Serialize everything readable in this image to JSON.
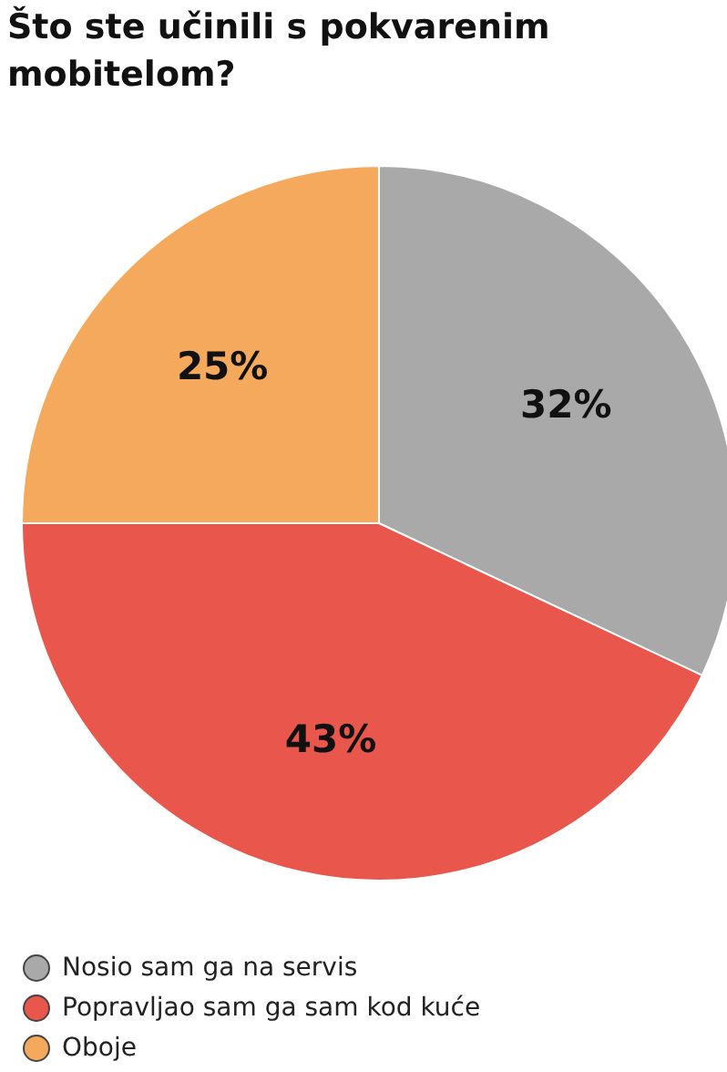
{
  "chart_data": {
    "type": "pie",
    "title": "Što ste učinili s pokvarenim mobitelom?",
    "categories": [
      "Nosio sam ga na servis",
      "Popravljao sam ga sam kod kuće",
      "Oboje"
    ],
    "values": [
      32,
      43,
      25
    ],
    "colors": [
      "#a9a9a9",
      "#e9564b",
      "#f5a95c"
    ],
    "value_labels": [
      "32%",
      "43%",
      "25%"
    ],
    "legend": "bottom left"
  }
}
